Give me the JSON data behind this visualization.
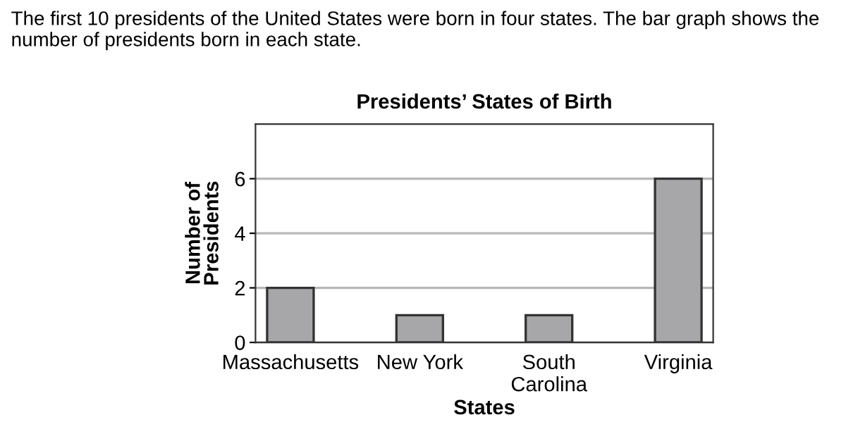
{
  "chart_data": {
    "type": "bar",
    "title": "Presidents’ States of Birth",
    "annotations": [
      "The first 10 presidents of the United States were born in four states. The bar graph shows the number of presidents born in each state."
    ],
    "categories": [
      "Massachusetts",
      "New York",
      "South\nCarolina",
      "Virginia"
    ],
    "values": [
      2,
      1,
      1,
      6
    ],
    "color": "#a7a7a9",
    "xlabel": "States",
    "ylabel": "Number of\nPresidents",
    "ylim": [
      0,
      8
    ],
    "yticks": [
      0,
      2,
      4,
      6
    ],
    "grid": "y"
  }
}
